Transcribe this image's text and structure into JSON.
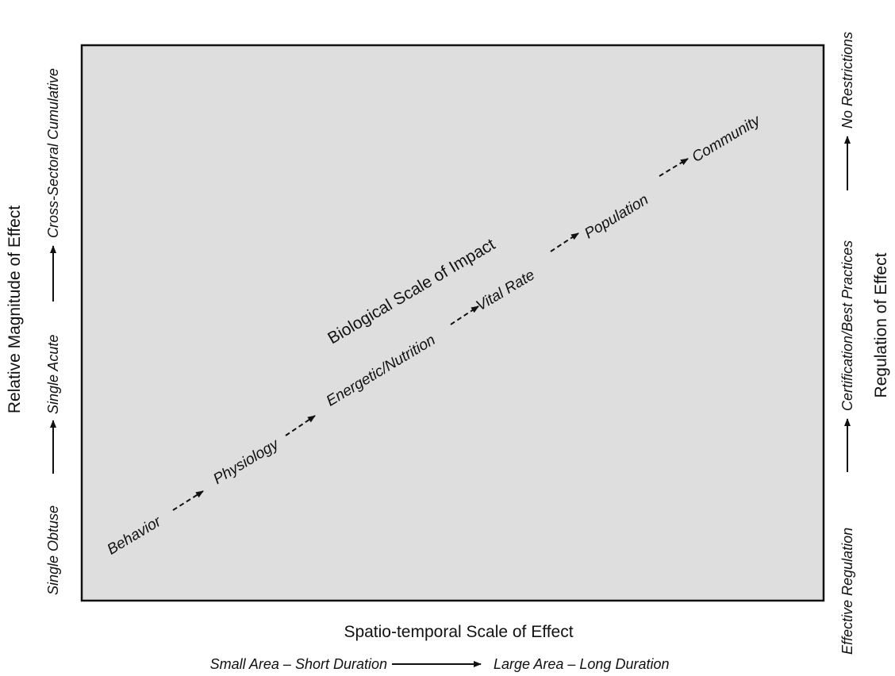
{
  "diagram": {
    "background_color": "#dedede",
    "border_color": "#111111",
    "scale_title": "Biological Scale of Impact",
    "stages": [
      "Behavior",
      "Physiology",
      "Energetic/Nutrition",
      "Vital Rate",
      "Population",
      "Community"
    ]
  },
  "x_axis": {
    "title": "Spatio-temporal Scale of Effect",
    "from": "Small Area – Short Duration",
    "to": "Large Area – Long Duration"
  },
  "y_axis_left": {
    "title": "Relative Magnitude of Effect",
    "levels": [
      "Single Obtuse",
      "Single Acute",
      "Cross-Sectoral Cumulative"
    ]
  },
  "y_axis_right": {
    "title": "Regulation of Effect",
    "levels": [
      "Effective Regulation",
      "Certification/Best Practices",
      "No Restrictions"
    ]
  }
}
